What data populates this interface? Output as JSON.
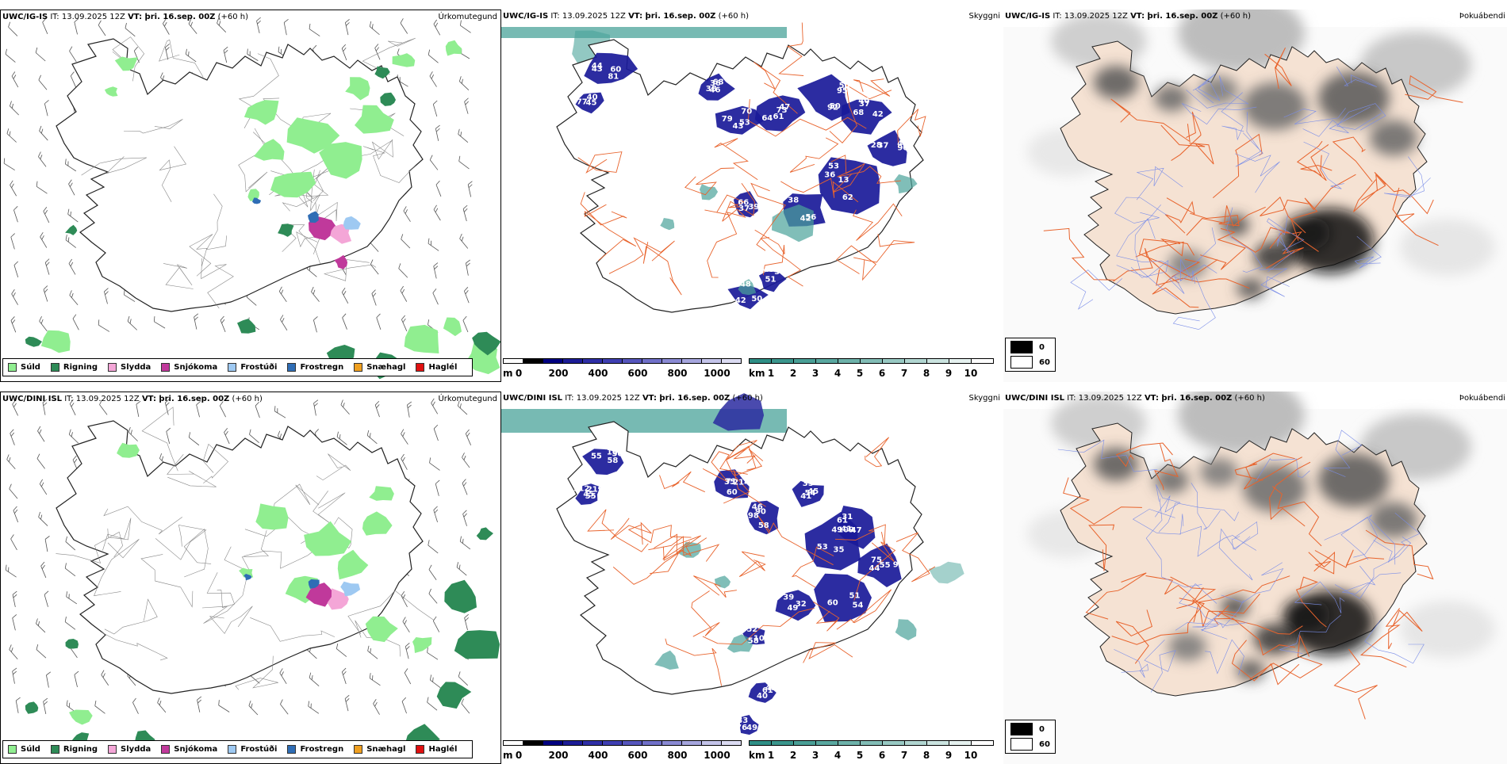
{
  "rows": [
    {
      "id": "top",
      "precip": {
        "model": "UWC/IG-IS",
        "it": "IT: 13.09.2025 12Z",
        "vt": "VT: þri. 16.sep. 00Z",
        "lead": "(+60 h)",
        "corner": "Úrkomutegund"
      },
      "vis": {
        "model": "UWC/IG-IS",
        "it": "IT: 13.09.2025 12Z",
        "vt": "VT: þri. 16.sep. 00Z",
        "lead": "(+60 h)",
        "corner": "Skyggni",
        "numbers": [
          "44",
          "25",
          "36",
          "70",
          "61",
          "50",
          "37",
          "48",
          "62",
          "42",
          "39",
          "42",
          "51",
          "81",
          "40",
          "46",
          "53",
          "64",
          "95",
          "68",
          "90",
          "53",
          "56",
          "66",
          "48",
          "43",
          "60",
          "77",
          "68",
          "43",
          "47",
          "50",
          "42",
          "37",
          "36",
          "38",
          "37",
          "50",
          "37",
          "43",
          "45",
          "38",
          "79",
          "73",
          "92",
          "40",
          "28",
          "13"
        ]
      },
      "fog": {
        "model": "UWC/IG-IS",
        "it": "IT: 13.09.2025 12Z",
        "vt": "VT: þri. 16.sep. 00Z",
        "lead": "(+60 h)",
        "corner": "Þokuábendi"
      }
    },
    {
      "id": "bottom",
      "precip": {
        "model": "UWC/DINI ISL",
        "it": "IT: 13.09.2025 12Z",
        "vt": "VT: þri. 16.sep. 00Z",
        "lead": "(+60 h)",
        "corner": "Úrkomutegund"
      },
      "vis": {
        "model": "UWC/DINI ISL",
        "it": "IT: 13.09.2025 12Z",
        "vt": "VT: þri. 16.sep. 00Z",
        "lead": "(+60 h)",
        "corner": "Skyggni",
        "numbers": [
          "55",
          "112",
          "35",
          "46",
          "41",
          "49",
          "61",
          "55",
          "54",
          "32",
          "52",
          "61",
          "49",
          "58",
          "45",
          "60",
          "90",
          "54",
          "53",
          "47",
          "90",
          "60",
          "39",
          "58",
          "48",
          "76",
          "50",
          "55",
          "71",
          "98",
          "45",
          "35",
          "31",
          "44",
          "51",
          "49",
          "104",
          "40",
          "83",
          "109",
          "219",
          "214",
          "58",
          "35",
          "109",
          "41",
          "75"
        ]
      },
      "fog": {
        "model": "UWC/DINI ISL",
        "it": "IT: 13.09.2025 12Z",
        "vt": "VT: þri. 16.sep. 00Z",
        "lead": "(+60 h)",
        "corner": "Þokuábendi"
      }
    }
  ],
  "precip_legend": [
    {
      "label": "Súld",
      "color": "#90ee90"
    },
    {
      "label": "Rigning",
      "color": "#2e8b57"
    },
    {
      "label": "Slydda",
      "color": "#f4a6d7"
    },
    {
      "label": "Snjókoma",
      "color": "#c0399b"
    },
    {
      "label": "Frostúði",
      "color": "#9ec9f2"
    },
    {
      "label": "Frostregn",
      "color": "#2f6db5"
    },
    {
      "label": "Snæhagl",
      "color": "#f0a020"
    },
    {
      "label": "Haglél",
      "color": "#e01010"
    }
  ],
  "vis_scale_m": {
    "unit": "m",
    "ticks": [
      "0",
      "200",
      "400",
      "600",
      "800",
      "1000"
    ],
    "colors": [
      "#ffffff",
      "#000000",
      "#000080",
      "#1c1c96",
      "#2e2ea6",
      "#3f3fb2",
      "#5656bd",
      "#7070c9",
      "#8a8ad4",
      "#a6a6de",
      "#c4c4ea",
      "#dcdcf3"
    ]
  },
  "vis_scale_km": {
    "unit": "km",
    "ticks": [
      "1",
      "2",
      "3",
      "4",
      "5",
      "6",
      "7",
      "8",
      "9",
      "10"
    ],
    "colors": [
      "#2f8f86",
      "#3b968d",
      "#4a9f96",
      "#5aa8a0",
      "#6db2aa",
      "#82bdb6",
      "#98c9c3",
      "#b1d6d1",
      "#cbe4e0",
      "#e6f2f0",
      "#ffffff"
    ]
  },
  "fog_legend": [
    {
      "label": "0",
      "color": "#000000"
    },
    {
      "label": "60",
      "color": "#ffffff"
    }
  ],
  "colors": {
    "iceland_fill": "#f5e2d3",
    "roads": "#e8632c",
    "rivers": "#7a8de8",
    "rain_light": "#90ee90",
    "rain": "#2e8b57",
    "sea_fog_teal": "#4aa39a",
    "vis_blue": "#1a1a99"
  }
}
